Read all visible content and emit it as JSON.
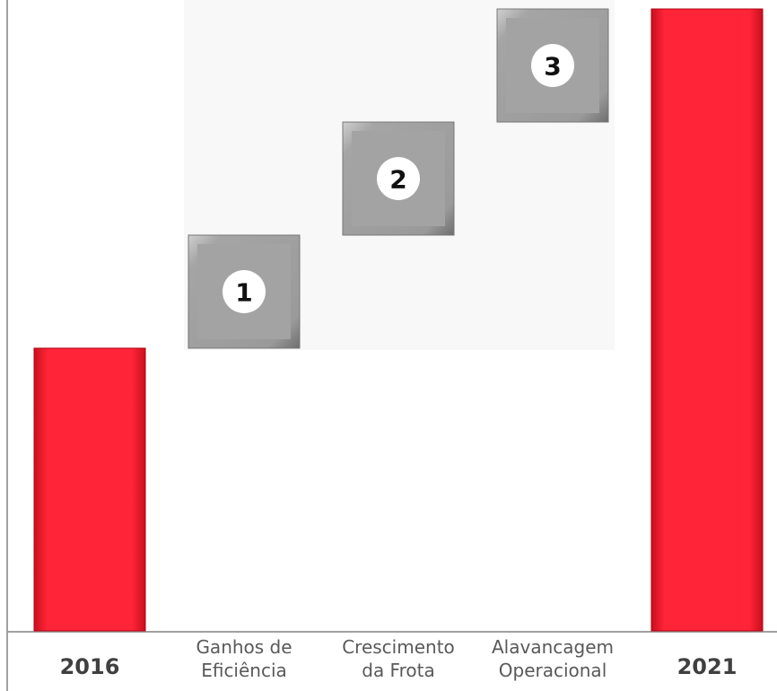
{
  "chart_data": {
    "type": "waterfall",
    "categories": [
      "2016",
      "Ganhos de Eficiência",
      "Crescimento da Frota",
      "Alavancagem Operacional",
      "2021"
    ],
    "values": [
      50,
      20,
      20,
      20,
      110
    ],
    "measure": [
      "absolute",
      "relative",
      "relative",
      "relative",
      "total"
    ],
    "step_labels": [
      null,
      "1",
      "2",
      "3",
      null
    ],
    "total_color": "#ff1f33",
    "step_color": "#9f9f9f",
    "ylim": [
      0,
      110
    ]
  }
}
